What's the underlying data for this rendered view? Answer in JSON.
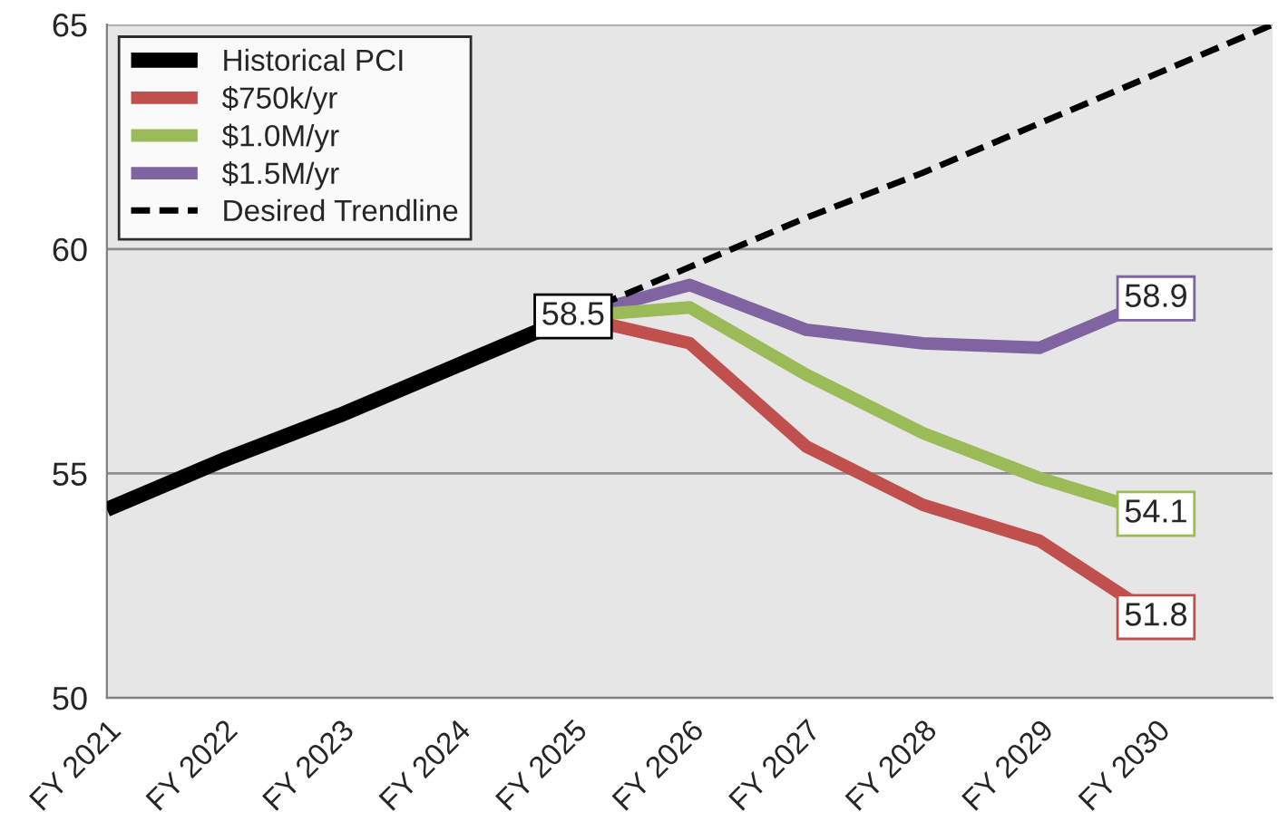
{
  "chart_data": {
    "type": "line",
    "categories": [
      "FY 2021",
      "FY 2022",
      "FY 2023",
      "FY 2024",
      "FY 2025",
      "FY 2026",
      "FY 2027",
      "FY 2028",
      "FY 2029",
      "FY 2030",
      null
    ],
    "ylim": [
      50,
      65
    ],
    "yticks": [
      50,
      55,
      60,
      65
    ],
    "grid": "y",
    "legend": "top left",
    "marker": "none",
    "series": [
      {
        "name": "Historical PCI",
        "color": "#000000",
        "values": [
          54.2,
          55.3,
          56.3,
          57.4,
          58.5,
          null,
          null,
          null,
          null,
          null,
          null
        ],
        "value_labels": [
          null,
          null,
          null,
          null,
          "58.5",
          null,
          null,
          null,
          null,
          null,
          null
        ]
      },
      {
        "name": "$750k/yr",
        "color": "#c0504d",
        "values": [
          null,
          null,
          null,
          null,
          58.5,
          57.9,
          55.6,
          54.3,
          53.5,
          51.8,
          null
        ],
        "value_labels": [
          null,
          null,
          null,
          null,
          null,
          null,
          null,
          null,
          null,
          "51.8",
          null
        ]
      },
      {
        "name": "$1.0M/yr",
        "color": "#9bbb59",
        "values": [
          null,
          null,
          null,
          null,
          58.5,
          58.7,
          57.2,
          55.9,
          54.9,
          54.1,
          null
        ],
        "value_labels": [
          null,
          null,
          null,
          null,
          null,
          null,
          null,
          null,
          null,
          "54.1",
          null
        ]
      },
      {
        "name": "$1.5M/yr",
        "color": "#8064a2",
        "values": [
          null,
          null,
          null,
          null,
          58.5,
          59.2,
          58.2,
          57.9,
          57.8,
          58.9,
          null
        ],
        "value_labels": [
          null,
          null,
          null,
          null,
          null,
          null,
          null,
          null,
          null,
          "58.9",
          null
        ]
      },
      {
        "name": "Desired Trendline",
        "color": "#000000",
        "line_style": "dashed",
        "values": [
          null,
          null,
          null,
          null,
          58.5,
          59.6,
          60.7,
          61.7,
          62.8,
          63.9,
          65.0
        ]
      }
    ]
  }
}
